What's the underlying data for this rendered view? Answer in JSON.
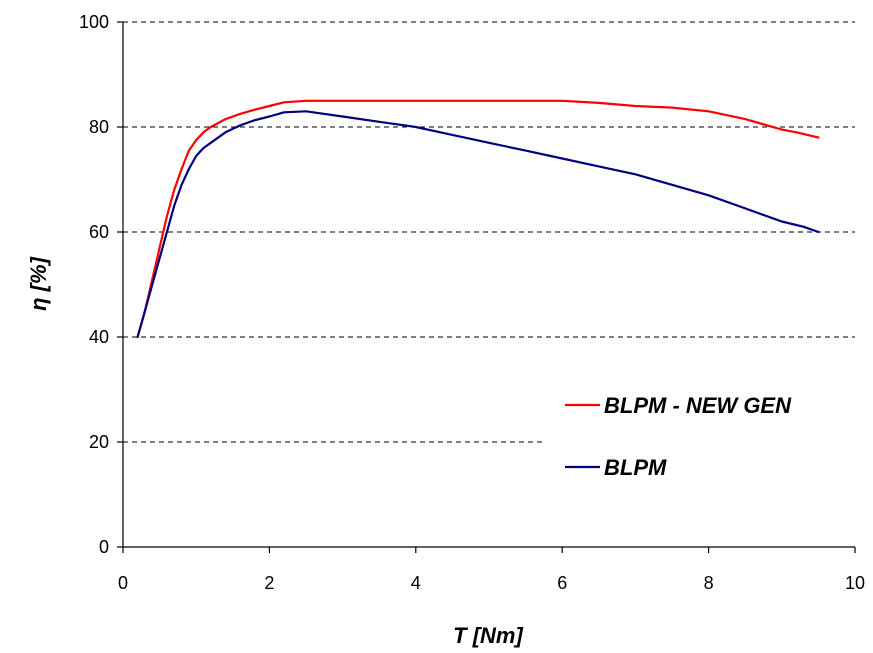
{
  "chart_data": {
    "type": "line",
    "xlabel": "T [Nm]",
    "ylabel": "η [%]",
    "xlim": [
      0,
      10
    ],
    "ylim": [
      0,
      100
    ],
    "xticks": [
      0,
      2,
      4,
      6,
      8,
      10
    ],
    "yticks": [
      0,
      20,
      40,
      60,
      80,
      100
    ],
    "grid": "horizontal dashed",
    "legend_position": "right",
    "series": [
      {
        "name": "BLPM - NEW GEN",
        "color": "#ff0000",
        "x": [
          0.2,
          0.3,
          0.4,
          0.5,
          0.6,
          0.7,
          0.8,
          0.9,
          1.0,
          1.1,
          1.2,
          1.4,
          1.6,
          1.8,
          2.0,
          2.2,
          2.5,
          3.0,
          3.5,
          4.0,
          4.5,
          5.0,
          5.5,
          6.0,
          6.5,
          7.0,
          7.5,
          8.0,
          8.5,
          9.0,
          9.2,
          9.5
        ],
        "y": [
          40,
          45,
          51,
          57,
          63,
          68,
          72,
          75.5,
          77.5,
          79,
          80,
          81.5,
          82.5,
          83.3,
          84,
          84.7,
          85,
          85,
          85,
          85,
          85,
          85,
          85,
          85,
          84.6,
          84,
          83.7,
          83,
          81.5,
          79.5,
          79,
          78
        ]
      },
      {
        "name": "BLPM",
        "color": "#000080",
        "x": [
          0.2,
          0.3,
          0.4,
          0.5,
          0.6,
          0.7,
          0.8,
          0.9,
          1.0,
          1.1,
          1.2,
          1.4,
          1.6,
          1.8,
          2.0,
          2.2,
          2.5,
          3.0,
          3.5,
          4.0,
          4.5,
          5.0,
          5.5,
          6.0,
          6.5,
          7.0,
          7.5,
          8.0,
          8.5,
          9.0,
          9.3,
          9.5
        ],
        "y": [
          40,
          45,
          50,
          55,
          60,
          65,
          69,
          72,
          74.5,
          76,
          77,
          79,
          80.3,
          81.3,
          82,
          82.8,
          83,
          82,
          81,
          80,
          78.5,
          77,
          75.5,
          74,
          72.5,
          71,
          69,
          67,
          64.5,
          62,
          61,
          60
        ]
      }
    ]
  }
}
